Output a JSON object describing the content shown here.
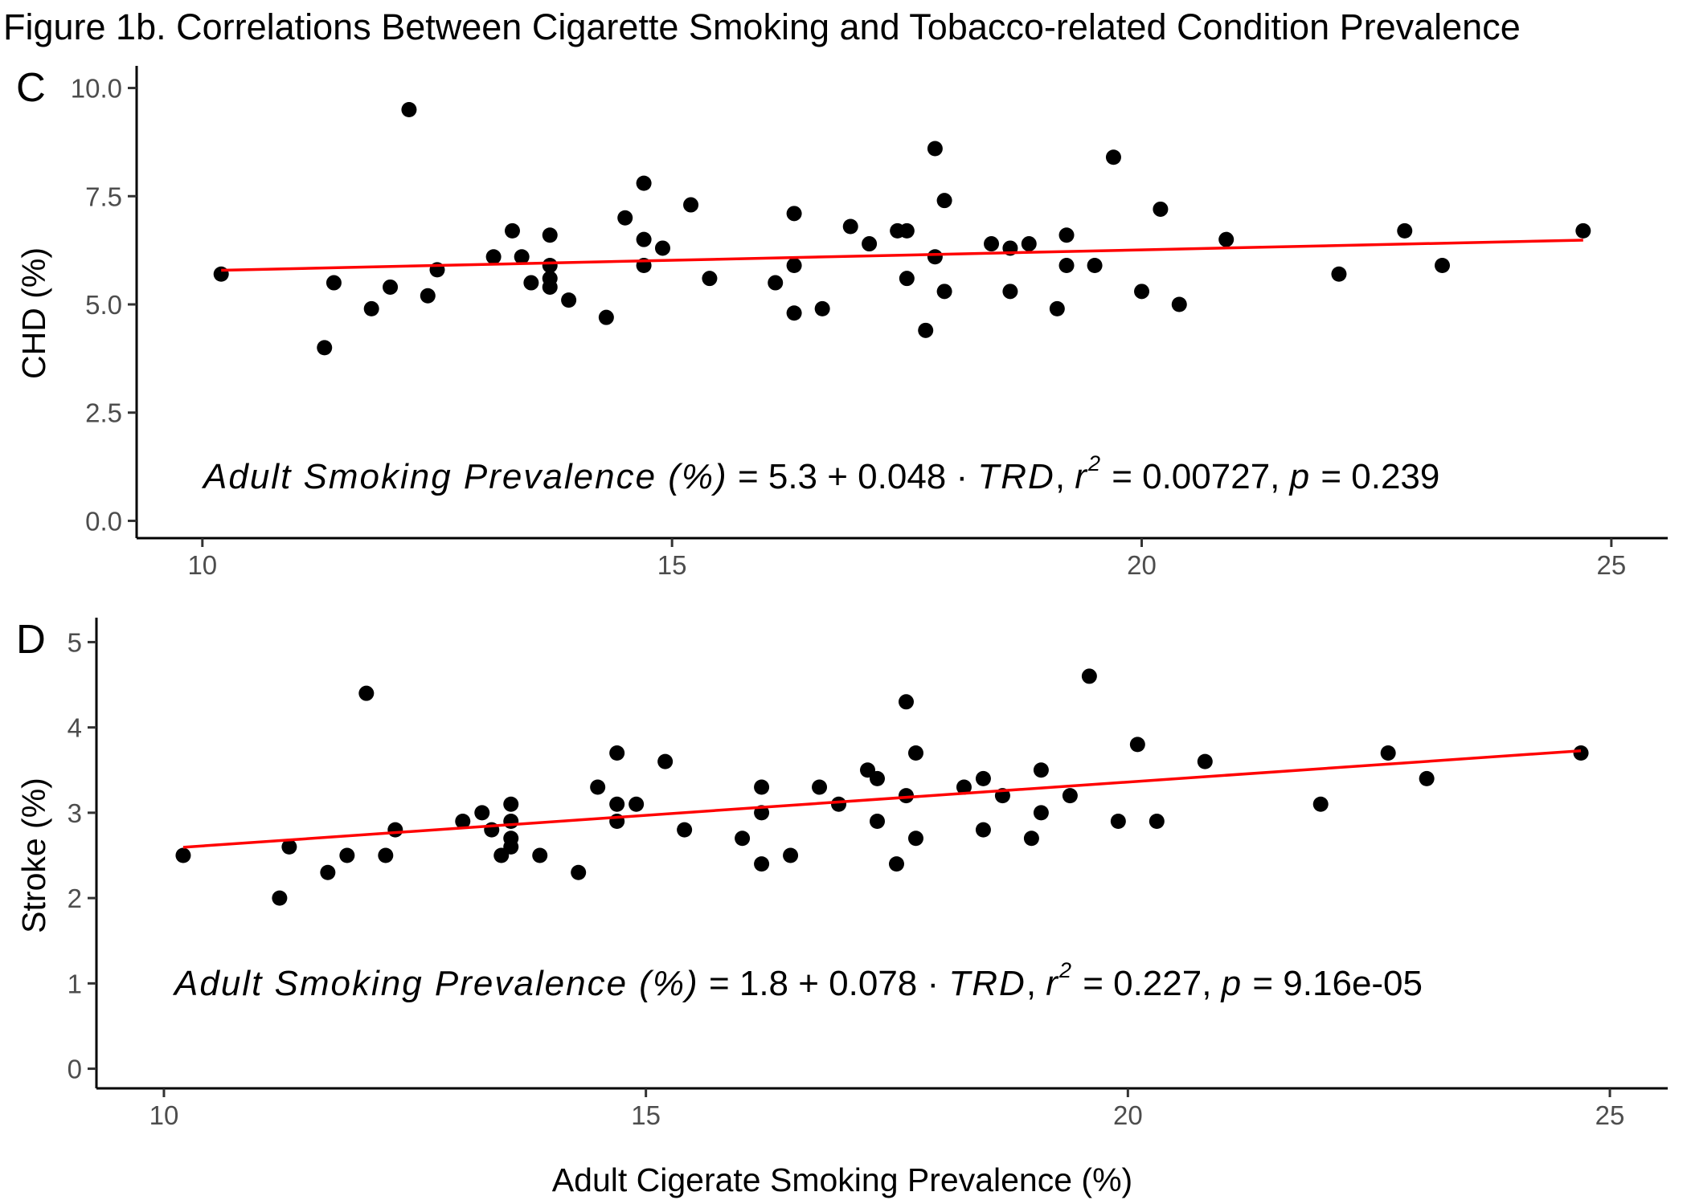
{
  "figure_title": "Figure 1b. Correlations Between Cigarette Smoking and Tobacco-related Condition Prevalence",
  "x_axis_title": "Adult Cigerate Smoking Prevalence (%)",
  "colors": {
    "points": "#000000",
    "fit_line": "#ff0000",
    "tick_labels": "#4d4d4d"
  },
  "panels": [
    {
      "label": "C",
      "ylabel": "CHD (%)",
      "equation": {
        "lhs": "Adult Smoking Prevalence (%)",
        "rhs": " = 5.3 + 0.048 · ",
        "var": "TRD",
        "r2_prefix": ",  ",
        "r": "r",
        "sup": "2",
        "r2_value": " = 0.00727,  ",
        "p": "p",
        "p_value": " = 0.239"
      }
    },
    {
      "label": "D",
      "ylabel": "Stroke (%)",
      "equation": {
        "lhs": "Adult Smoking Prevalence (%)",
        "rhs": " = 1.8 + 0.078 · ",
        "var": "TRD",
        "r2_prefix": ",  ",
        "r": "r",
        "sup": "2",
        "r2_value": " = 0.227,  ",
        "p": "p",
        "p_value": " = 9.16e-05"
      }
    }
  ],
  "chart_data": [
    {
      "type": "scatter",
      "title": "",
      "xlabel": "Adult Cigerate Smoking Prevalence (%)",
      "ylabel": "CHD (%)",
      "xlim": [
        9.3,
        25.6
      ],
      "ylim": [
        -0.4,
        10.4
      ],
      "x_ticks": [
        10,
        15,
        20,
        25
      ],
      "y_ticks": [
        0.0,
        2.5,
        5.0,
        7.5,
        10.0
      ],
      "y_tick_labels": [
        "0.0",
        "2.5",
        "5.0",
        "7.5",
        "10.0"
      ],
      "grid": false,
      "fit_line": {
        "intercept": 5.3,
        "slope": 0.048,
        "x_range": [
          10.2,
          24.7
        ]
      },
      "points": [
        {
          "x": 10.2,
          "y": 5.7
        },
        {
          "x": 11.3,
          "y": 4.0
        },
        {
          "x": 11.4,
          "y": 5.5
        },
        {
          "x": 11.8,
          "y": 4.9
        },
        {
          "x": 12.0,
          "y": 5.4
        },
        {
          "x": 12.2,
          "y": 9.5
        },
        {
          "x": 12.4,
          "y": 5.2
        },
        {
          "x": 12.5,
          "y": 5.8
        },
        {
          "x": 13.1,
          "y": 6.1
        },
        {
          "x": 13.3,
          "y": 6.7
        },
        {
          "x": 13.4,
          "y": 6.1
        },
        {
          "x": 13.5,
          "y": 5.5
        },
        {
          "x": 13.7,
          "y": 6.6
        },
        {
          "x": 13.7,
          "y": 5.9
        },
        {
          "x": 13.7,
          "y": 5.6
        },
        {
          "x": 13.7,
          "y": 5.4
        },
        {
          "x": 13.9,
          "y": 5.1
        },
        {
          "x": 14.3,
          "y": 4.7
        },
        {
          "x": 14.5,
          "y": 7.0
        },
        {
          "x": 14.7,
          "y": 7.8
        },
        {
          "x": 14.7,
          "y": 6.5
        },
        {
          "x": 14.7,
          "y": 5.9
        },
        {
          "x": 14.9,
          "y": 6.3
        },
        {
          "x": 15.2,
          "y": 7.3
        },
        {
          "x": 15.4,
          "y": 5.6
        },
        {
          "x": 16.1,
          "y": 5.5
        },
        {
          "x": 16.3,
          "y": 7.1
        },
        {
          "x": 16.3,
          "y": 5.9
        },
        {
          "x": 16.3,
          "y": 4.8
        },
        {
          "x": 16.6,
          "y": 4.9
        },
        {
          "x": 16.9,
          "y": 6.8
        },
        {
          "x": 17.1,
          "y": 6.4
        },
        {
          "x": 17.4,
          "y": 6.7
        },
        {
          "x": 17.5,
          "y": 6.7
        },
        {
          "x": 17.5,
          "y": 5.6
        },
        {
          "x": 17.7,
          "y": 4.4
        },
        {
          "x": 17.8,
          "y": 8.6
        },
        {
          "x": 17.8,
          "y": 6.1
        },
        {
          "x": 17.9,
          "y": 7.4
        },
        {
          "x": 17.9,
          "y": 5.3
        },
        {
          "x": 18.4,
          "y": 6.4
        },
        {
          "x": 18.6,
          "y": 6.3
        },
        {
          "x": 18.6,
          "y": 5.3
        },
        {
          "x": 18.8,
          "y": 6.4
        },
        {
          "x": 19.1,
          "y": 4.9
        },
        {
          "x": 19.2,
          "y": 6.6
        },
        {
          "x": 19.2,
          "y": 5.9
        },
        {
          "x": 19.5,
          "y": 5.9
        },
        {
          "x": 19.7,
          "y": 8.4
        },
        {
          "x": 20.0,
          "y": 5.3
        },
        {
          "x": 20.2,
          "y": 7.2
        },
        {
          "x": 20.4,
          "y": 5.0
        },
        {
          "x": 20.9,
          "y": 6.5
        },
        {
          "x": 22.1,
          "y": 5.7
        },
        {
          "x": 22.8,
          "y": 6.7
        },
        {
          "x": 23.2,
          "y": 5.9
        },
        {
          "x": 24.7,
          "y": 6.7
        }
      ]
    },
    {
      "type": "scatter",
      "title": "",
      "xlabel": "Adult Cigerate Smoking Prevalence (%)",
      "ylabel": "Stroke (%)",
      "xlim": [
        9.3,
        25.6
      ],
      "ylim": [
        -0.23,
        5.23
      ],
      "x_ticks": [
        10,
        15,
        20,
        25
      ],
      "y_ticks": [
        0,
        1,
        2,
        3,
        4,
        5
      ],
      "y_tick_labels": [
        "0",
        "1",
        "2",
        "3",
        "4",
        "5"
      ],
      "grid": false,
      "fit_line": {
        "intercept": 1.8,
        "slope": 0.078,
        "x_range": [
          10.2,
          24.7
        ]
      },
      "points": [
        {
          "x": 10.2,
          "y": 2.5
        },
        {
          "x": 11.2,
          "y": 2.0
        },
        {
          "x": 11.3,
          "y": 2.6
        },
        {
          "x": 11.7,
          "y": 2.3
        },
        {
          "x": 11.9,
          "y": 2.5
        },
        {
          "x": 12.1,
          "y": 4.4
        },
        {
          "x": 12.3,
          "y": 2.5
        },
        {
          "x": 12.4,
          "y": 2.8
        },
        {
          "x": 13.1,
          "y": 2.9
        },
        {
          "x": 13.3,
          "y": 3.0
        },
        {
          "x": 13.4,
          "y": 2.8
        },
        {
          "x": 13.5,
          "y": 2.5
        },
        {
          "x": 13.6,
          "y": 3.1
        },
        {
          "x": 13.6,
          "y": 2.9
        },
        {
          "x": 13.6,
          "y": 2.7
        },
        {
          "x": 13.6,
          "y": 2.6
        },
        {
          "x": 13.9,
          "y": 2.5
        },
        {
          "x": 14.3,
          "y": 2.3
        },
        {
          "x": 14.5,
          "y": 3.3
        },
        {
          "x": 14.7,
          "y": 3.7
        },
        {
          "x": 14.7,
          "y": 3.1
        },
        {
          "x": 14.7,
          "y": 2.9
        },
        {
          "x": 14.9,
          "y": 3.1
        },
        {
          "x": 15.2,
          "y": 3.6
        },
        {
          "x": 15.4,
          "y": 2.8
        },
        {
          "x": 16.0,
          "y": 2.7
        },
        {
          "x": 16.2,
          "y": 3.3
        },
        {
          "x": 16.2,
          "y": 3.0
        },
        {
          "x": 16.2,
          "y": 2.4
        },
        {
          "x": 16.5,
          "y": 2.5
        },
        {
          "x": 16.8,
          "y": 3.3
        },
        {
          "x": 17.0,
          "y": 3.1
        },
        {
          "x": 17.3,
          "y": 3.5
        },
        {
          "x": 17.4,
          "y": 3.4
        },
        {
          "x": 17.4,
          "y": 2.9
        },
        {
          "x": 17.6,
          "y": 2.4
        },
        {
          "x": 17.7,
          "y": 4.3
        },
        {
          "x": 17.7,
          "y": 3.2
        },
        {
          "x": 17.8,
          "y": 3.7
        },
        {
          "x": 17.8,
          "y": 2.7
        },
        {
          "x": 18.3,
          "y": 3.3
        },
        {
          "x": 18.5,
          "y": 3.4
        },
        {
          "x": 18.5,
          "y": 2.8
        },
        {
          "x": 18.7,
          "y": 3.2
        },
        {
          "x": 19.0,
          "y": 2.7
        },
        {
          "x": 19.1,
          "y": 3.5
        },
        {
          "x": 19.1,
          "y": 3.0
        },
        {
          "x": 19.4,
          "y": 3.2
        },
        {
          "x": 19.6,
          "y": 4.6
        },
        {
          "x": 19.9,
          "y": 2.9
        },
        {
          "x": 20.1,
          "y": 3.8
        },
        {
          "x": 20.3,
          "y": 2.9
        },
        {
          "x": 20.8,
          "y": 3.6
        },
        {
          "x": 22.0,
          "y": 3.1
        },
        {
          "x": 22.7,
          "y": 3.7
        },
        {
          "x": 23.1,
          "y": 3.4
        },
        {
          "x": 24.7,
          "y": 3.7
        }
      ]
    }
  ]
}
